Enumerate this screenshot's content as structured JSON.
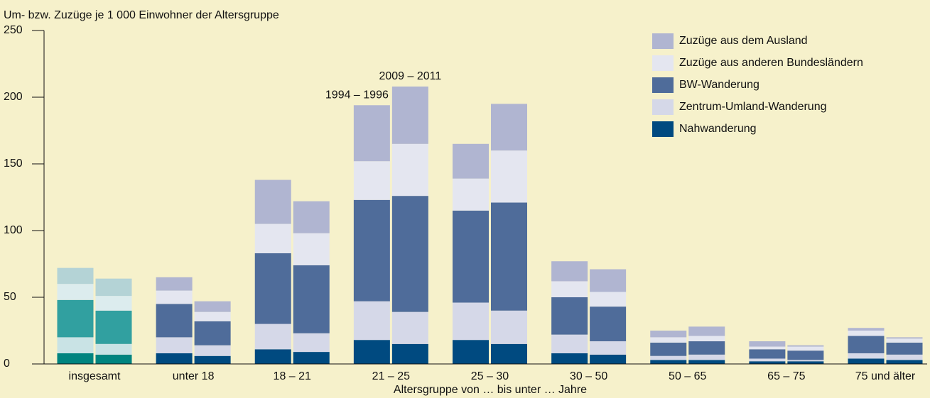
{
  "chart_data": {
    "type": "bar",
    "stacked": true,
    "y_label": "Um- bzw. Zuzüge je 1 000 Einwohner der Altersgruppe",
    "x_label": "Altersgruppe von … bis unter … Jahre",
    "categories": [
      "insgesamt",
      "unter 18",
      "18 – 21",
      "21 – 25",
      "25 – 30",
      "30 – 50",
      "50 – 65",
      "65 – 75",
      "75 und älter"
    ],
    "groups": [
      "1994 – 1996",
      "2009 – 2011"
    ],
    "annotated_category": 3,
    "highlighted_category": 0,
    "series": [
      {
        "name": "Nahwanderung",
        "color": "#004a80",
        "highlight_color": "#00847f",
        "values": [
          [
            8,
            7
          ],
          [
            8,
            6
          ],
          [
            11,
            9
          ],
          [
            18,
            15
          ],
          [
            18,
            15
          ],
          [
            8,
            7
          ],
          [
            3,
            3
          ],
          [
            2,
            2
          ],
          [
            4,
            3
          ]
        ]
      },
      {
        "name": "Zentrum-Umland-Wanderung",
        "color": "#d5d8e8",
        "highlight_color": "#c9e3e5",
        "values": [
          [
            12,
            8
          ],
          [
            12,
            8
          ],
          [
            19,
            14
          ],
          [
            29,
            24
          ],
          [
            28,
            25
          ],
          [
            14,
            10
          ],
          [
            3,
            4
          ],
          [
            2,
            1
          ],
          [
            4,
            4
          ]
        ]
      },
      {
        "name": "BW-Wanderung",
        "color": "#4f6c9a",
        "highlight_color": "#31a0a0",
        "values": [
          [
            28,
            25
          ],
          [
            25,
            18
          ],
          [
            53,
            51
          ],
          [
            76,
            87
          ],
          [
            69,
            81
          ],
          [
            28,
            26
          ],
          [
            10,
            10
          ],
          [
            7,
            7
          ],
          [
            13,
            9
          ]
        ]
      },
      {
        "name": "Zuzüge aus anderen Bundesländern",
        "color": "#e4e6f0",
        "highlight_color": "#dcecee",
        "values": [
          [
            12,
            11
          ],
          [
            10,
            7
          ],
          [
            22,
            24
          ],
          [
            29,
            39
          ],
          [
            24,
            39
          ],
          [
            12,
            11
          ],
          [
            4,
            4
          ],
          [
            2,
            3
          ],
          [
            4,
            3
          ]
        ]
      },
      {
        "name": "Zuzüge aus dem Ausland",
        "color": "#b0b5d1",
        "highlight_color": "#b4d3d6",
        "values": [
          [
            12,
            13
          ],
          [
            10,
            8
          ],
          [
            33,
            24
          ],
          [
            42,
            43
          ],
          [
            26,
            35
          ],
          [
            15,
            17
          ],
          [
            5,
            7
          ],
          [
            4,
            1
          ],
          [
            2,
            1
          ]
        ]
      }
    ],
    "ylim": [
      0,
      250
    ],
    "yticks": [
      0,
      50,
      100,
      150,
      200,
      250
    ],
    "legend_position": "upper right"
  }
}
